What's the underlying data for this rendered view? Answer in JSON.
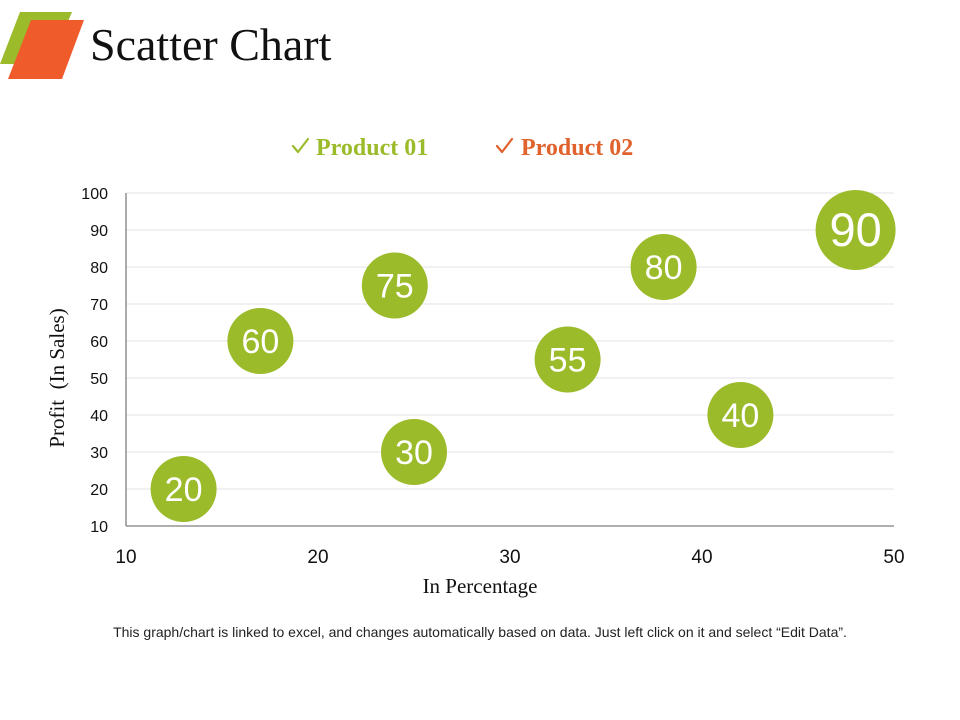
{
  "title": "Scatter Chart",
  "footnote": "This graph/chart is linked to excel, and changes automatically based on data. Just left click on it and select “Edit Data”.",
  "colors": {
    "product01": "#9bbb2b",
    "product02": "#e0622d",
    "logo_back": "#9bbb2b",
    "logo_front": "#ef5b2b",
    "grid": "#e3e3e3",
    "axis": "#7f7f7f"
  },
  "chart_data": {
    "type": "scatter",
    "title": "",
    "xlabel": "In Percentage",
    "ylabel": "Profit  (In Sales)",
    "xlim": [
      10,
      50
    ],
    "ylim": [
      10,
      100
    ],
    "xticks": [
      "10",
      "20",
      "30",
      "40",
      "50"
    ],
    "yticks": [
      "10",
      "20",
      "30",
      "40",
      "50",
      "60",
      "70",
      "80",
      "90",
      "100"
    ],
    "grid": true,
    "legend_position": "top-center",
    "legend_marker": "check-icon",
    "series": [
      {
        "name": "Product 01",
        "points": [
          {
            "x": 13,
            "y": 20,
            "label": "20"
          },
          {
            "x": 17,
            "y": 60,
            "label": "60"
          },
          {
            "x": 24,
            "y": 75,
            "label": "75"
          },
          {
            "x": 25,
            "y": 30,
            "label": "30"
          },
          {
            "x": 33,
            "y": 55,
            "label": "55"
          },
          {
            "x": 38,
            "y": 80,
            "label": "80"
          },
          {
            "x": 42,
            "y": 40,
            "label": "40"
          },
          {
            "x": 48,
            "y": 90,
            "label": "90"
          }
        ]
      },
      {
        "name": "Product 02",
        "points": []
      }
    ]
  }
}
